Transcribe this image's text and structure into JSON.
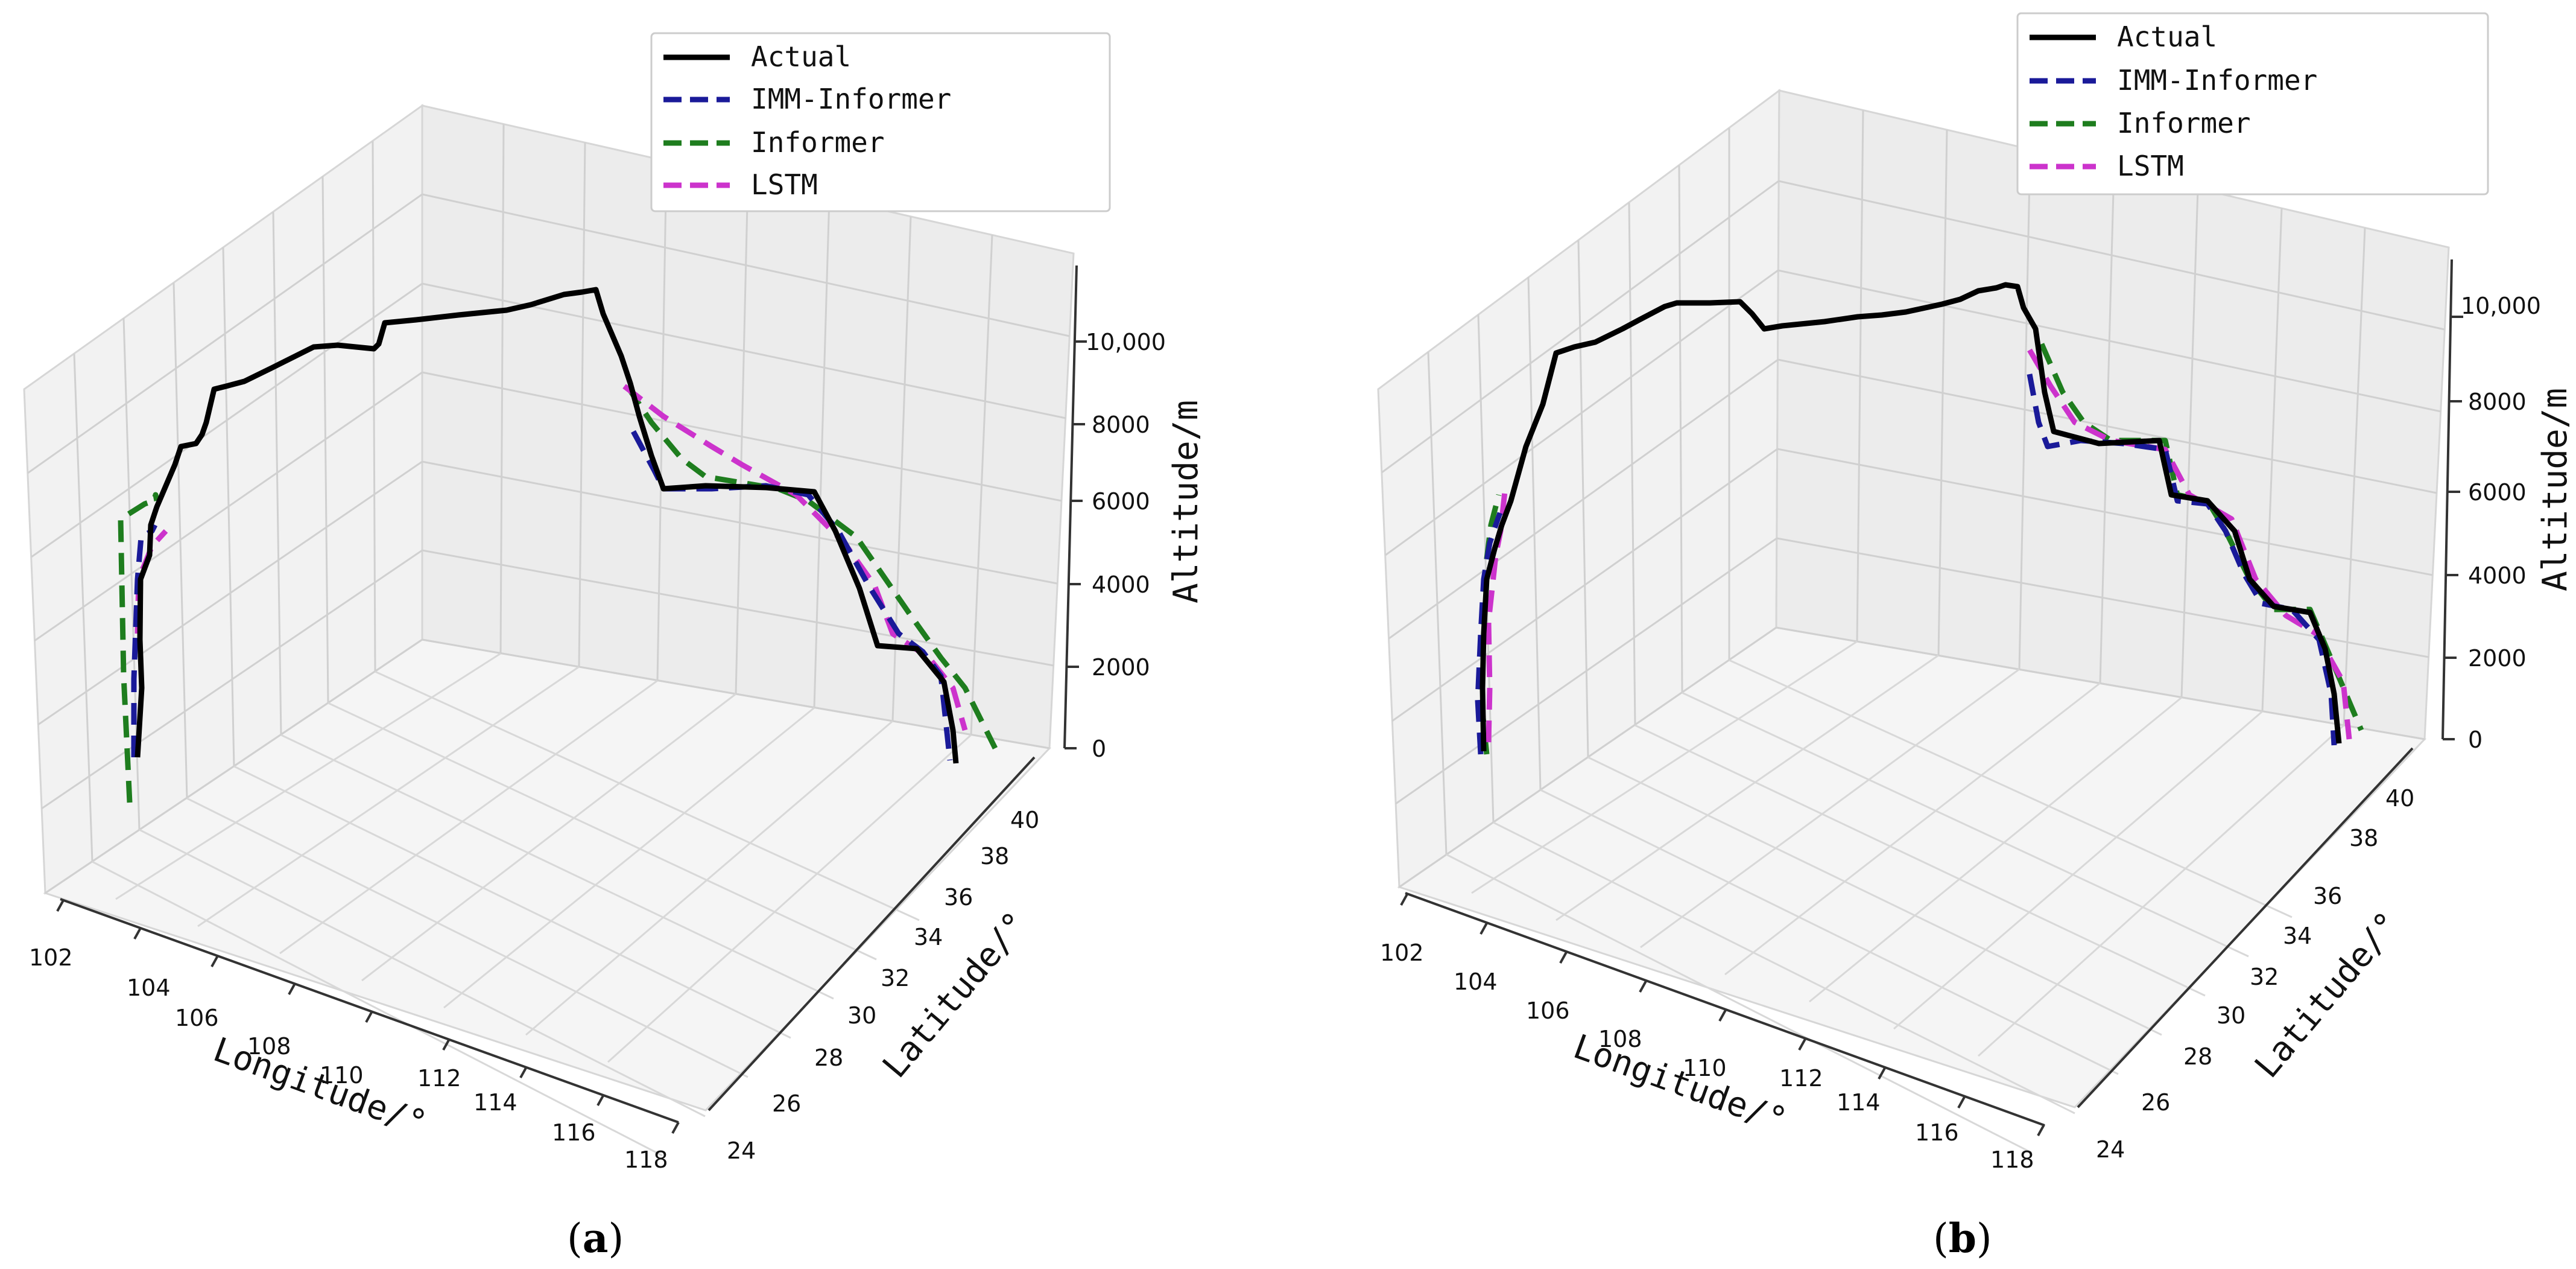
{
  "chart_data": [
    {
      "panel": "a",
      "caption_open": "(",
      "caption_letter": "a",
      "caption_close": ")",
      "type": "line3d",
      "xlabel": "Longitude/°",
      "ylabel": "Latitude/°",
      "zlabel": "Altitude/m",
      "xticks": [
        "102",
        "104",
        "106",
        "108",
        "110",
        "112",
        "114",
        "116",
        "118"
      ],
      "yticks": [
        "24",
        "26",
        "28",
        "30",
        "32",
        "34",
        "36",
        "38",
        "40"
      ],
      "zticks": [
        "0",
        "2000",
        "4000",
        "6000",
        "8000",
        "10,000"
      ],
      "legend": [
        "Actual",
        "IMM-Informer",
        "Informer",
        "LSTM"
      ],
      "colors": {
        "Actual": "#000000",
        "IMM-Informer": "#1a1a99",
        "Informer": "#1e7d1e",
        "LSTM": "#cc33cc"
      }
    },
    {
      "panel": "b",
      "caption_open": "(",
      "caption_letter": "b",
      "caption_close": ")",
      "type": "line3d",
      "xlabel": "Longitude/°",
      "ylabel": "Latitude/°",
      "zlabel": "Altitude/m",
      "xticks": [
        "102",
        "104",
        "106",
        "108",
        "110",
        "112",
        "114",
        "116",
        "118"
      ],
      "yticks": [
        "24",
        "26",
        "28",
        "30",
        "32",
        "34",
        "36",
        "38",
        "40"
      ],
      "zticks": [
        "0",
        "2000",
        "4000",
        "6000",
        "8000",
        "10,000"
      ],
      "legend": [
        "Actual",
        "IMM-Informer",
        "Informer",
        "LSTM"
      ],
      "colors": {
        "Actual": "#000000",
        "IMM-Informer": "#1a1a99",
        "Informer": "#1e7d1e",
        "LSTM": "#cc33cc"
      }
    }
  ]
}
